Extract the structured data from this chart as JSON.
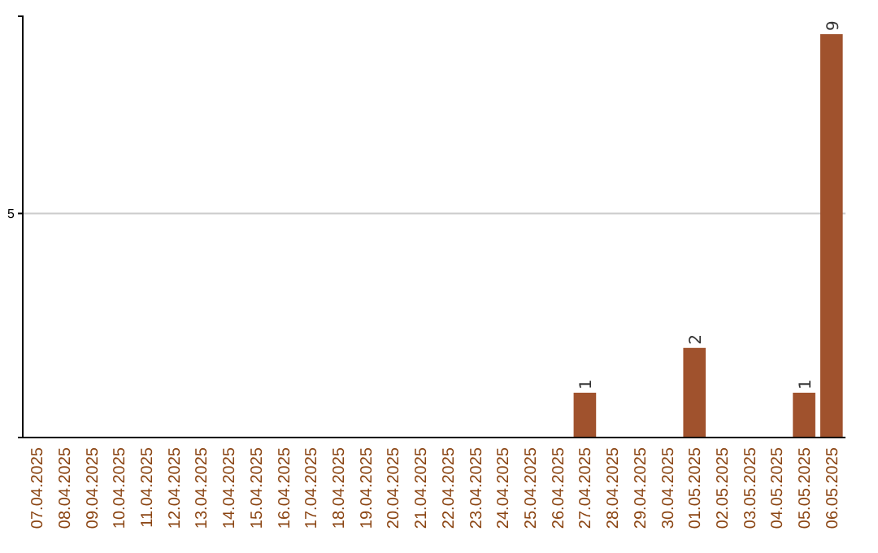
{
  "chart_data": {
    "type": "bar",
    "categories": [
      "07.04.2025",
      "08.04.2025",
      "09.04.2025",
      "10.04.2025",
      "11.04.2025",
      "12.04.2025",
      "13.04.2025",
      "14.04.2025",
      "15.04.2025",
      "16.04.2025",
      "17.04.2025",
      "18.04.2025",
      "19.04.2025",
      "20.04.2025",
      "21.04.2025",
      "22.04.2025",
      "23.04.2025",
      "24.04.2025",
      "25.04.2025",
      "26.04.2025",
      "27.04.2025",
      "28.04.2025",
      "29.04.2025",
      "30.04.2025",
      "01.05.2025",
      "02.05.2025",
      "03.05.2025",
      "04.05.2025",
      "05.05.2025",
      "06.05.2025"
    ],
    "values": [
      null,
      null,
      null,
      null,
      null,
      null,
      null,
      null,
      null,
      null,
      null,
      null,
      null,
      null,
      null,
      null,
      null,
      null,
      null,
      null,
      1,
      null,
      null,
      null,
      2,
      null,
      null,
      null,
      1,
      9
    ],
    "value_labels": [
      null,
      null,
      null,
      null,
      null,
      null,
      null,
      null,
      null,
      null,
      null,
      null,
      null,
      null,
      null,
      null,
      null,
      null,
      null,
      null,
      "1",
      null,
      null,
      null,
      "2",
      null,
      null,
      null,
      "1",
      "9"
    ],
    "color": "#a0522d",
    "ylim": [
      0,
      9.4
    ],
    "yticks": [
      {
        "value": 0,
        "label": null
      },
      5
    ],
    "grid": "y"
  }
}
